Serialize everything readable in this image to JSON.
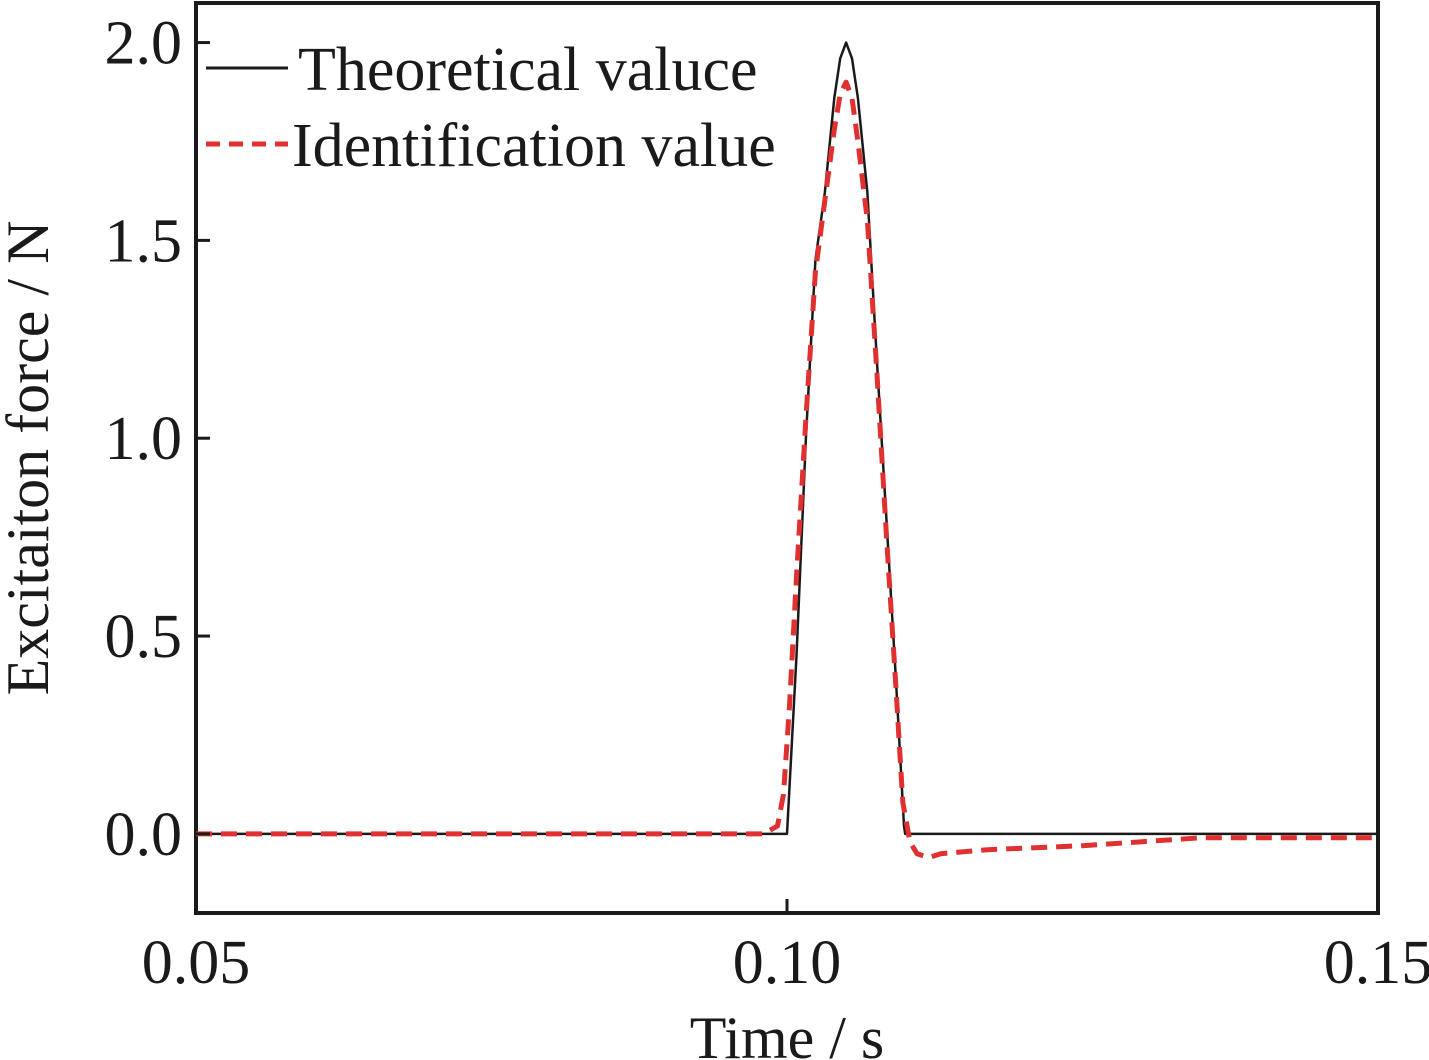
{
  "chart_data": {
    "type": "line",
    "title": "",
    "xlabel": "Time / s",
    "ylabel": "Excitaiton force / N",
    "xlim": [
      0.05,
      0.15
    ],
    "ylim": [
      -0.2,
      2.1
    ],
    "xticks": [
      0.05,
      0.1,
      0.15
    ],
    "xtick_labels": [
      "0.05",
      "0.10",
      "0.15"
    ],
    "yticks": [
      0.0,
      0.5,
      1.0,
      1.5,
      2.0
    ],
    "ytick_labels": [
      "0.0",
      "0.5",
      "1.0",
      "1.5",
      "2.0"
    ],
    "grid": false,
    "legend_position": "top-left",
    "series": [
      {
        "name": "Theoretical valuce",
        "color": "#1a1a1a",
        "style": "solid",
        "x": [
          0.05,
          0.0999,
          0.1,
          0.1008,
          0.1016,
          0.1024,
          0.1032,
          0.104,
          0.1045,
          0.105,
          0.1055,
          0.106,
          0.1068,
          0.1076,
          0.1084,
          0.1092,
          0.1099,
          0.11,
          0.15
        ],
        "y": [
          0.0,
          0.0,
          0.0,
          0.45,
          1.0,
          1.45,
          1.62,
          1.86,
          1.96,
          2.0,
          1.96,
          1.86,
          1.62,
          1.2,
          0.8,
          0.4,
          0.02,
          0.0,
          0.0
        ]
      },
      {
        "name": "Identification value",
        "color": "#e03030",
        "style": "dashed",
        "x": [
          0.05,
          0.098,
          0.0992,
          0.0997,
          0.1002,
          0.1008,
          0.1016,
          0.1024,
          0.1032,
          0.104,
          0.1045,
          0.105,
          0.1055,
          0.106,
          0.1068,
          0.1076,
          0.1084,
          0.1092,
          0.1098,
          0.1104,
          0.111,
          0.112,
          0.113,
          0.117,
          0.125,
          0.135,
          0.15
        ],
        "y": [
          0.0,
          0.0,
          0.02,
          0.1,
          0.32,
          0.65,
          1.05,
          1.42,
          1.6,
          1.78,
          1.87,
          1.9,
          1.86,
          1.75,
          1.55,
          1.17,
          0.76,
          0.38,
          0.08,
          -0.02,
          -0.05,
          -0.06,
          -0.05,
          -0.04,
          -0.03,
          -0.01,
          -0.01
        ]
      }
    ]
  }
}
